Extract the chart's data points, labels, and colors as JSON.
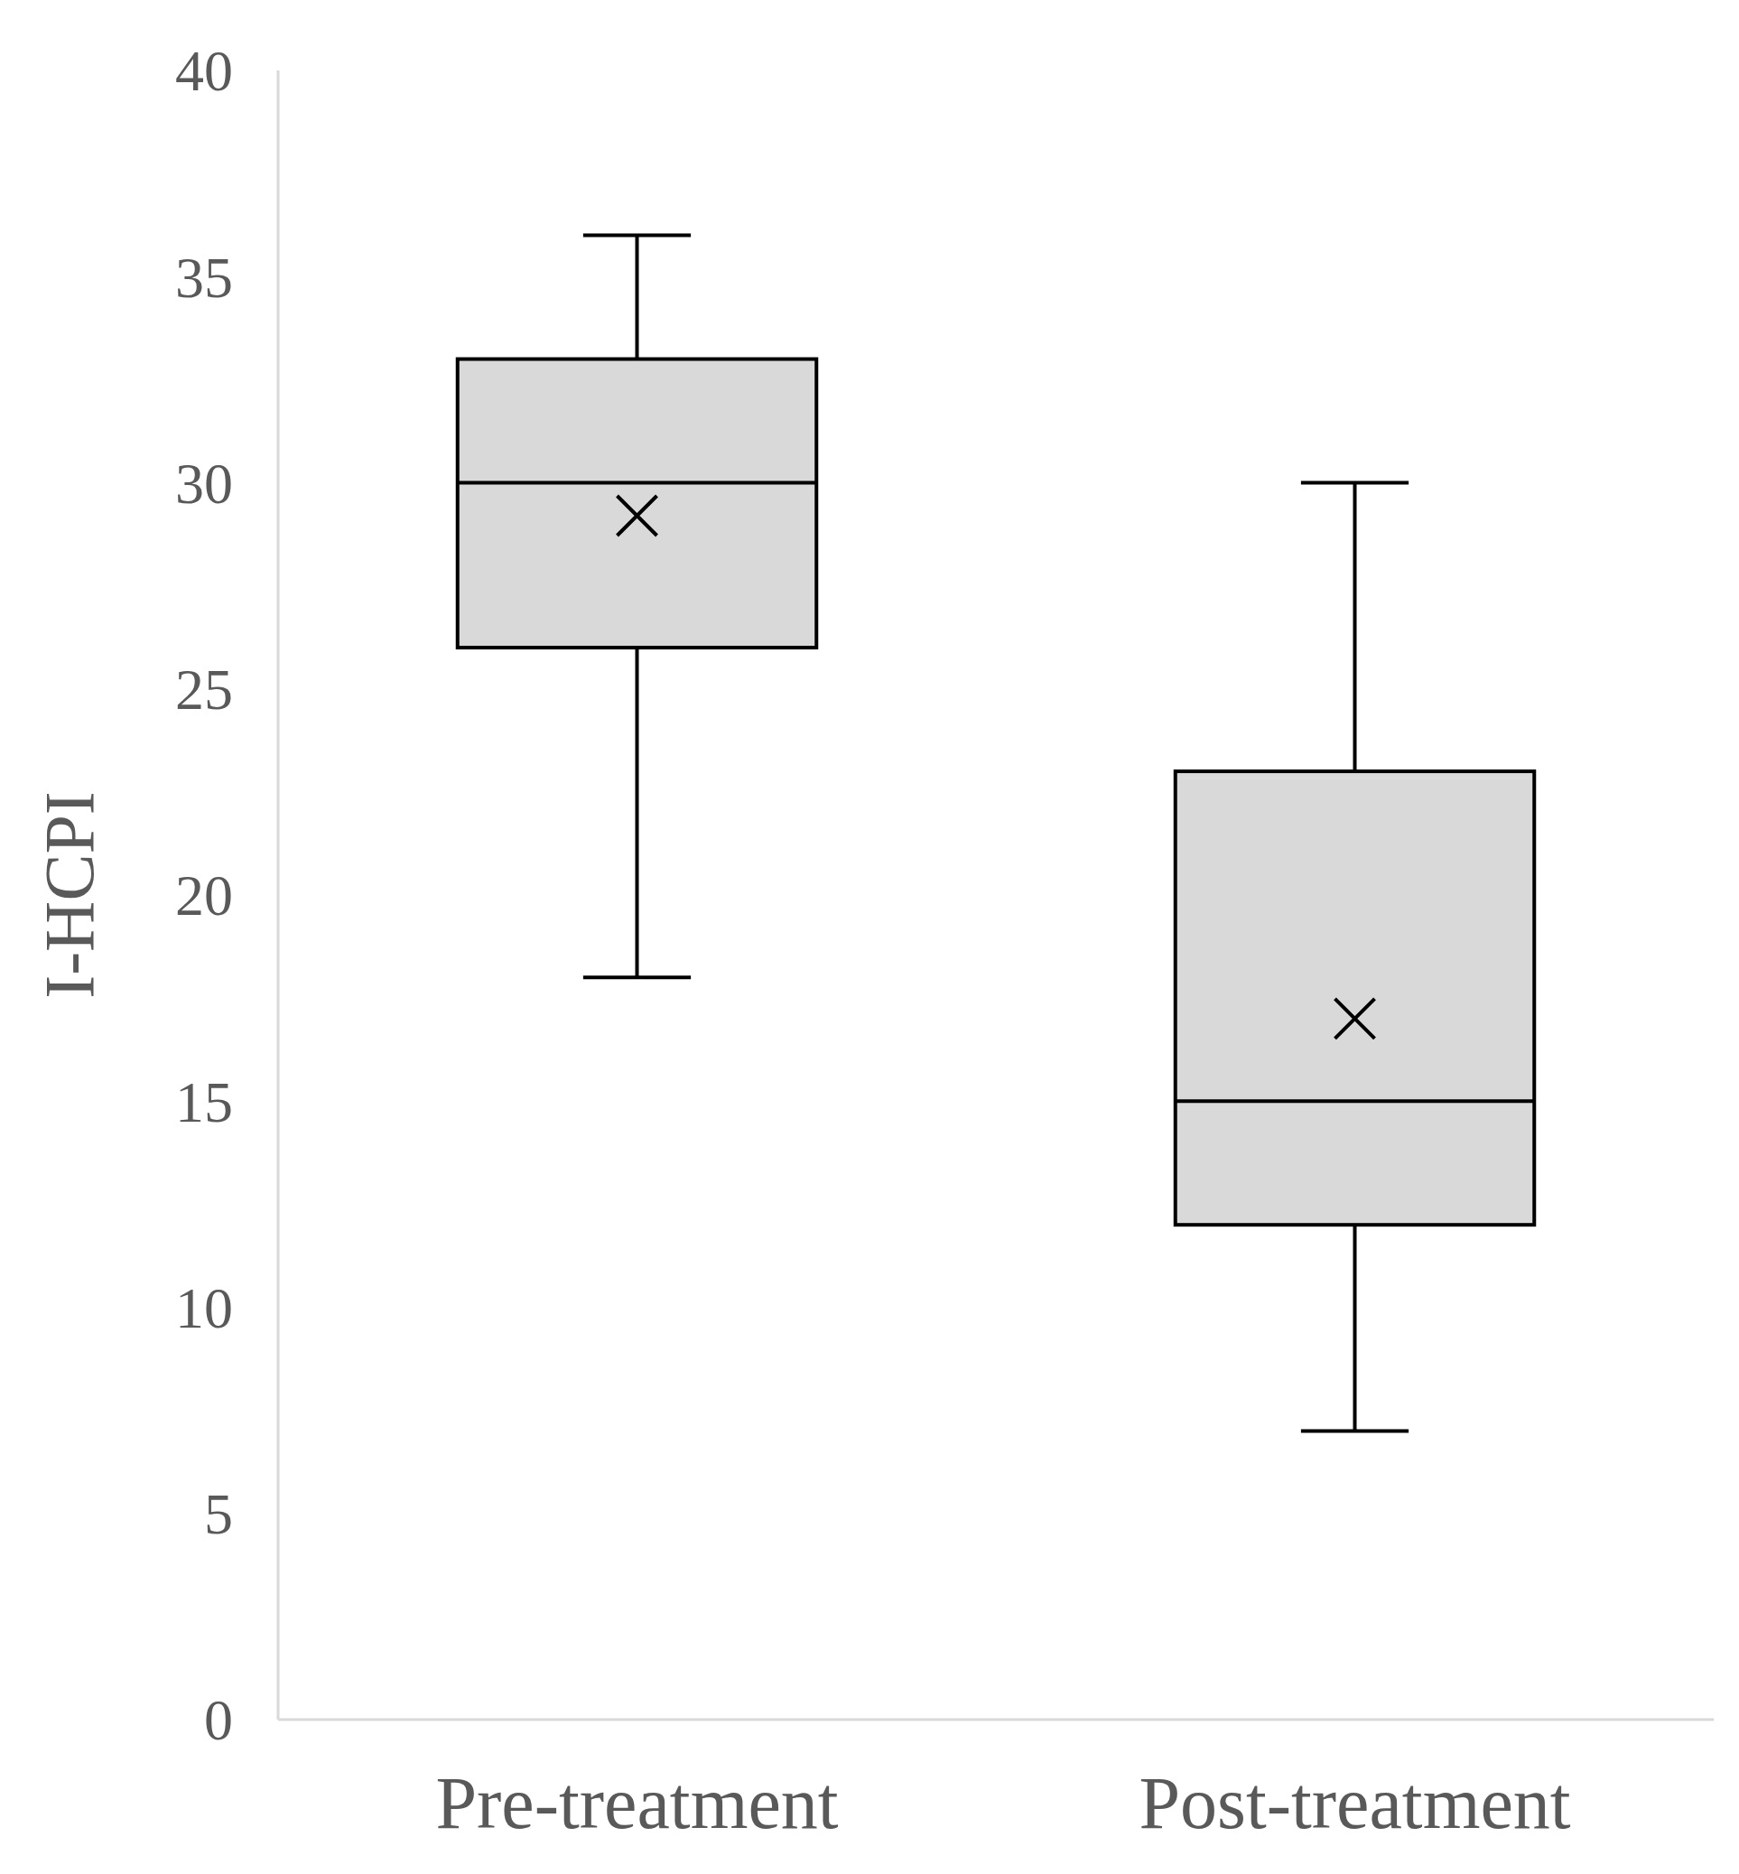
{
  "chart_data": {
    "type": "box",
    "ylabel": "I-HCPI",
    "categories": [
      "Pre-treatment",
      "Post-treatment"
    ],
    "color": "#d9d9d9",
    "boxes": [
      {
        "low": 18,
        "q1": 26,
        "median": 30,
        "q3": 33,
        "high": 36,
        "mean": 29.2
      },
      {
        "low": 7,
        "q1": 12,
        "median": 15,
        "q3": 23,
        "high": 30,
        "mean": 17
      }
    ],
    "ylim": [
      0,
      40
    ],
    "yticks": [
      0,
      5,
      10,
      15,
      20,
      25,
      30,
      35,
      40
    ]
  }
}
